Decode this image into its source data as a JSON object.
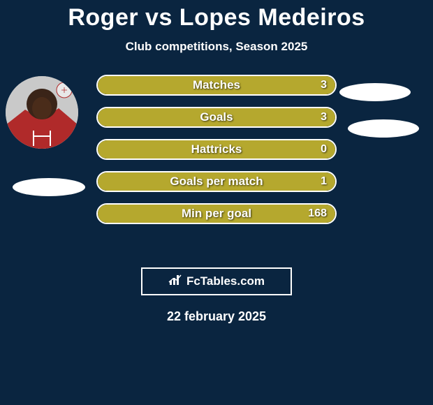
{
  "title": "Roger vs Lopes Medeiros",
  "subtitle": "Club competitions, Season 2025",
  "bar_color": "#b5a82e",
  "background_color": "#0a2540",
  "stats": [
    {
      "label": "Matches",
      "value": "3",
      "fill_pct": 100
    },
    {
      "label": "Goals",
      "value": "3",
      "fill_pct": 100
    },
    {
      "label": "Hattricks",
      "value": "0",
      "fill_pct": 100
    },
    {
      "label": "Goals per match",
      "value": "1",
      "fill_pct": 100
    },
    {
      "label": "Min per goal",
      "value": "168",
      "fill_pct": 100
    }
  ],
  "branding": "FcTables.com",
  "date": "22 february 2025"
}
